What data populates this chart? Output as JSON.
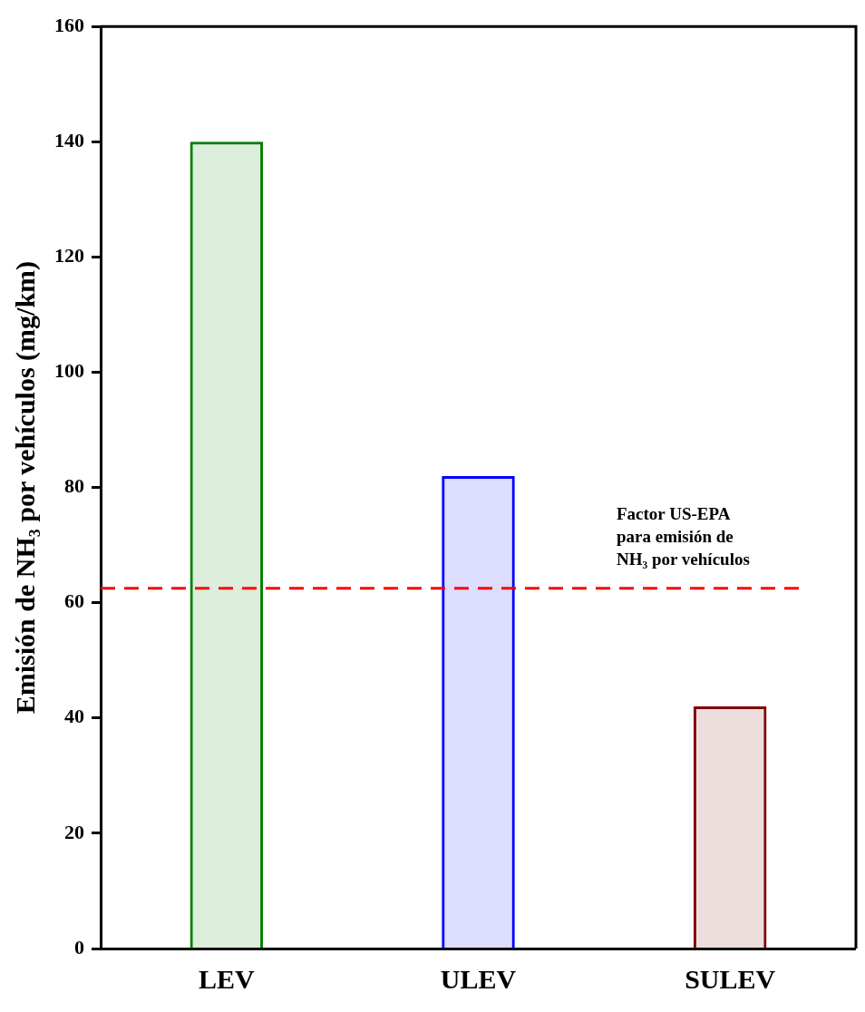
{
  "chart_data": {
    "type": "bar",
    "ylabel": "Emisión de NH₃ por vehículos (mg/km)",
    "categories": [
      "LEV",
      "ULEV",
      "SULEV"
    ],
    "values": [
      140,
      82,
      42
    ],
    "colors": [
      "#008000",
      "#0000ff",
      "#800000"
    ],
    "ylim": [
      0,
      160
    ],
    "yticks": [
      0,
      20,
      40,
      60,
      80,
      100,
      120,
      140,
      160
    ],
    "grid": false,
    "legend": false,
    "ref_lines": [
      {
        "axis": "y",
        "value": 62.5,
        "label": "Factor US-EPA\npara emisión de\nNH₃ por vehículos",
        "color": "#ff0000",
        "line_style": "dashed"
      }
    ]
  }
}
